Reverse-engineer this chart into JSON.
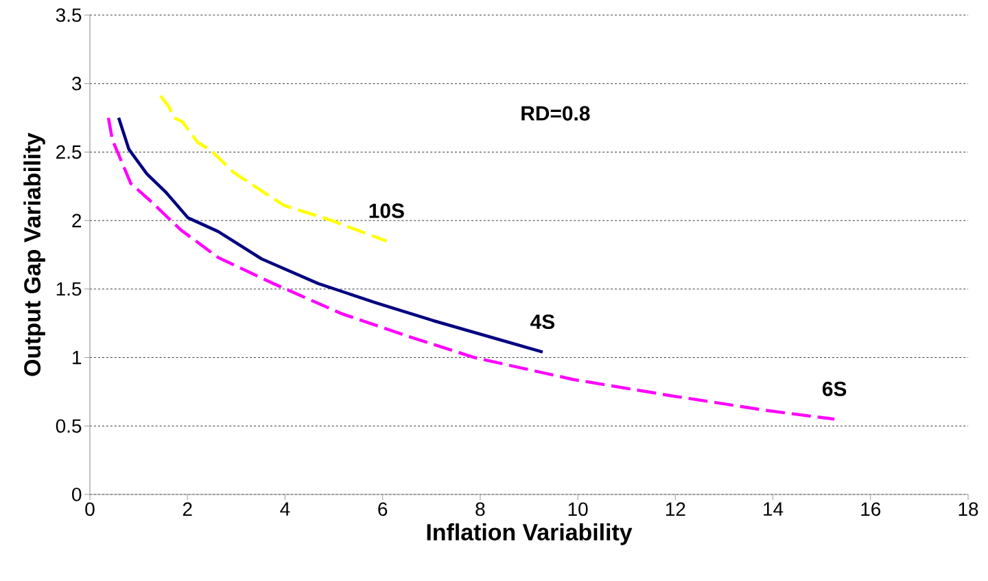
{
  "chart_data": {
    "type": "line",
    "xlabel": "Inflation Variability",
    "ylabel": "Output Gap Variability",
    "annotations": [
      "RD=0.8"
    ],
    "xlim": [
      0,
      18
    ],
    "xticks": [
      0,
      2,
      4,
      6,
      8,
      10,
      12,
      14,
      16,
      18
    ],
    "ylim": [
      0,
      3.5
    ],
    "yticks": [
      0,
      0.5,
      1,
      1.5,
      2,
      2.5,
      3,
      3.5
    ],
    "grid": "y",
    "marker": "none",
    "series": [
      {
        "name": "10S",
        "color": "#ffff00",
        "line_style": "dashed",
        "x": [
          1.45,
          1.62,
          1.73,
          1.9,
          2.21,
          2.49,
          2.95,
          3.98,
          4.88,
          6.08
        ],
        "values": [
          2.91,
          2.83,
          2.75,
          2.72,
          2.57,
          2.51,
          2.35,
          2.11,
          2.01,
          1.85
        ]
      },
      {
        "name": "4S",
        "color": "#000080",
        "line_style": "solid",
        "x": [
          0.59,
          0.8,
          1.17,
          1.55,
          2.01,
          2.63,
          3.52,
          4.68,
          5.86,
          7.03,
          9.28
        ],
        "values": [
          2.75,
          2.52,
          2.34,
          2.21,
          2.02,
          1.92,
          1.72,
          1.54,
          1.4,
          1.27,
          1.04
        ]
      },
      {
        "name": "6S",
        "color": "#ff00ff",
        "line_style": "dashed",
        "x": [
          0.38,
          0.46,
          0.84,
          1.22,
          1.87,
          2.63,
          3.76,
          5.16,
          6.65,
          7.88,
          9.9,
          11.93,
          13.94,
          15.26
        ],
        "values": [
          2.75,
          2.59,
          2.27,
          2.15,
          1.93,
          1.73,
          1.54,
          1.32,
          1.14,
          1.0,
          0.84,
          0.72,
          0.61,
          0.55
        ]
      }
    ]
  }
}
